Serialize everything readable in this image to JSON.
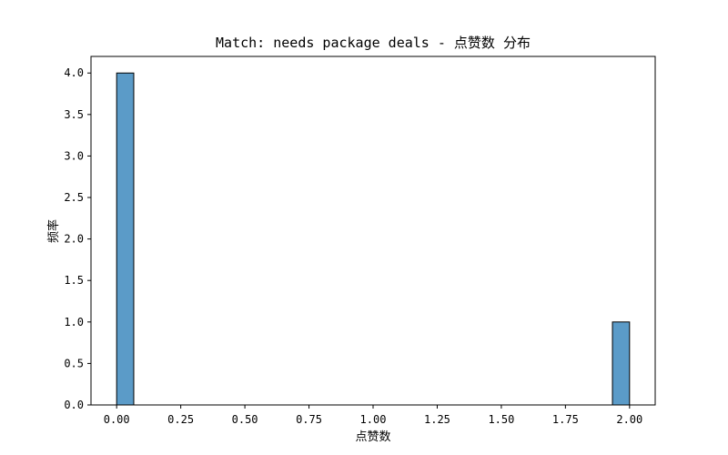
{
  "chart_data": {
    "type": "bar",
    "title": "Match: needs package deals - 点赞数 分布",
    "xlabel": "点赞数",
    "ylabel": "频率",
    "xlim": [
      -0.1,
      2.1
    ],
    "ylim": [
      0,
      4.2
    ],
    "xticks": [
      0.0,
      0.25,
      0.5,
      0.75,
      1.0,
      1.25,
      1.5,
      1.75,
      2.0
    ],
    "xtick_labels": [
      "0.00",
      "0.25",
      "0.50",
      "0.75",
      "1.00",
      "1.25",
      "1.50",
      "1.75",
      "2.00"
    ],
    "yticks": [
      0.0,
      0.5,
      1.0,
      1.5,
      2.0,
      2.5,
      3.0,
      3.5,
      4.0
    ],
    "ytick_labels": [
      "0.0",
      "0.5",
      "1.0",
      "1.5",
      "2.0",
      "2.5",
      "3.0",
      "3.5",
      "4.0"
    ],
    "bins": [
      {
        "x_start": 0.0,
        "x_end": 0.0667,
        "value": 4
      },
      {
        "x_start": 1.9333,
        "x_end": 2.0,
        "value": 1
      }
    ],
    "grid": false,
    "legend": "none",
    "colors": {
      "bar_fill": "#5b9bc8",
      "bar_edge": "#000000"
    }
  }
}
